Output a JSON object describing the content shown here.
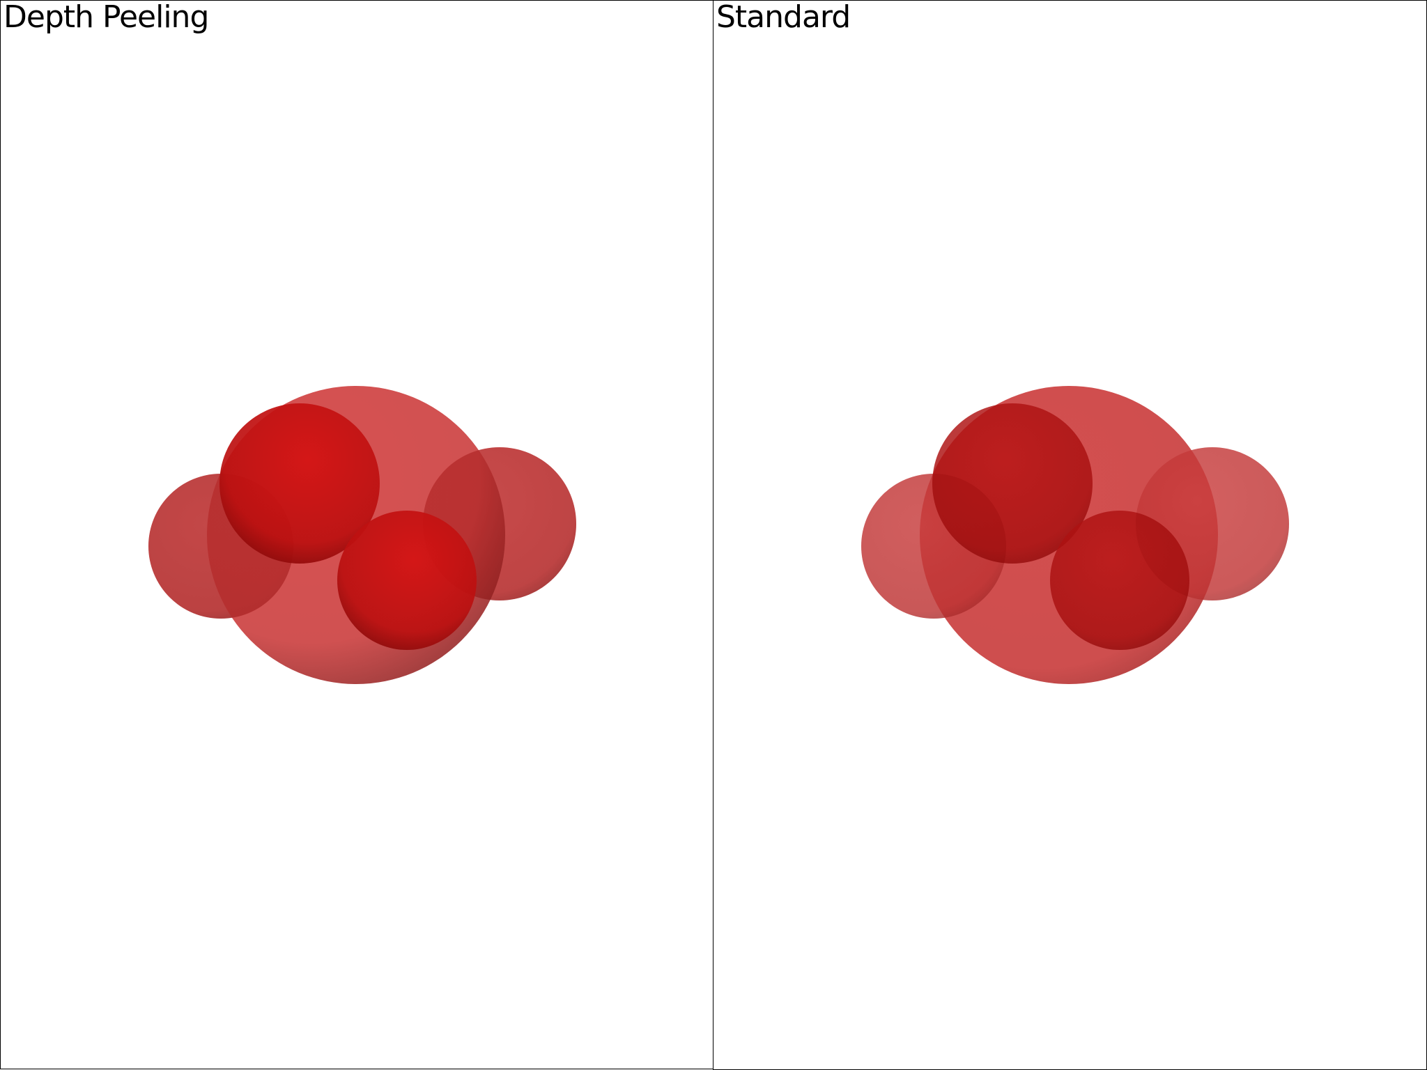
{
  "viewports": [
    {
      "title": "Depth Peeling",
      "render_mode": "depth-peeling"
    },
    {
      "title": "Standard",
      "render_mode": "standard"
    }
  ],
  "colors": {
    "background": "#ffffff",
    "border": "#000000",
    "sphere": "#cc1111"
  }
}
